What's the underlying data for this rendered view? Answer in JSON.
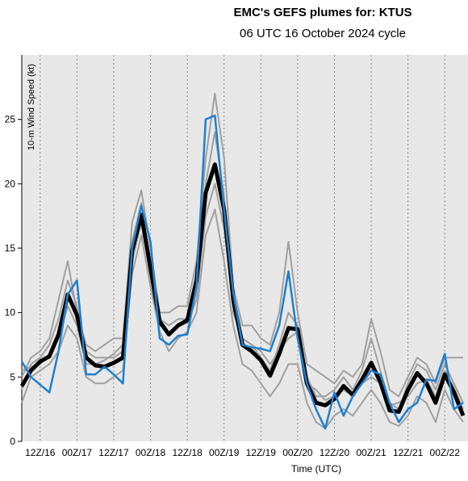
{
  "chart_data": {
    "type": "line",
    "title": "EMC's GEFS plumes for: KTUS",
    "subtitle": "06 UTC 16 October 2024 cycle",
    "x_label": "Time (UTC)",
    "y_label": "10-m Wind Speed (kt)",
    "categories": [
      null,
      null,
      "12Z/16",
      null,
      null,
      null,
      "00Z/17",
      null,
      null,
      null,
      "12Z/17",
      null,
      null,
      null,
      "00Z/18",
      null,
      null,
      null,
      "12Z/18",
      null,
      null,
      null,
      "00Z/19",
      null,
      null,
      null,
      "12Z/19",
      null,
      null,
      null,
      "00Z/20",
      null,
      null,
      null,
      "12Z/20",
      null,
      null,
      null,
      "00Z/21",
      null,
      null,
      null,
      "12Z/21",
      null,
      null,
      null,
      "00Z/22",
      null,
      null
    ],
    "ylim": [
      0,
      30
    ],
    "yticks": [
      0,
      5,
      10,
      15,
      20,
      25
    ],
    "series": [
      {
        "color": "#a0a0a0",
        "linewidth": 2,
        "values": [
          5,
          6.5,
          7,
          8,
          11,
          14,
          10,
          7.5,
          7,
          7.5,
          8,
          8,
          17,
          19.5,
          15,
          10,
          10,
          10.5,
          10.5,
          14,
          22,
          27,
          22,
          12,
          9,
          9,
          8,
          7.5,
          10,
          15.5,
          10,
          6,
          5.5,
          5,
          4.5,
          5.5,
          5,
          6,
          9.5,
          7,
          4,
          3.5,
          5,
          6.5,
          6,
          4.5,
          6.5,
          6.5,
          6.5
        ]
      },
      {
        "color": "#a0a0a0",
        "linewidth": 2,
        "values": [
          3,
          5,
          5.5,
          6,
          7,
          9,
          8,
          5,
          4.5,
          4.5,
          5,
          5.5,
          13,
          16,
          12,
          8.5,
          7,
          8,
          8.5,
          10,
          16,
          18,
          14,
          9,
          6,
          5.5,
          4.5,
          3.5,
          4.5,
          6,
          6,
          3,
          1.5,
          1,
          2,
          2.5,
          2,
          3,
          4,
          3,
          1.5,
          1.2,
          2,
          3.5,
          3,
          1.5,
          4,
          2.5,
          1.5
        ]
      },
      {
        "color": "#a0a0a0",
        "linewidth": 2,
        "values": [
          4,
          6,
          6.5,
          7.5,
          9.5,
          12.5,
          10.5,
          7,
          6.5,
          6.5,
          6.5,
          7,
          15.5,
          18.5,
          14,
          9.5,
          9,
          9.5,
          9.5,
          12,
          20,
          24,
          19,
          10,
          8,
          7.5,
          6.5,
          5.5,
          7.5,
          10,
          9,
          5,
          3.5,
          3.5,
          4,
          5,
          4,
          5.5,
          8,
          5.5,
          3,
          2.5,
          4.5,
          6,
          5.5,
          4,
          6,
          4.5,
          3
        ]
      },
      {
        "color": "#a0a0a0",
        "linewidth": 2,
        "values": [
          5.5,
          5.8,
          6,
          6.8,
          8,
          10.5,
          9,
          6,
          6,
          6.3,
          6.8,
          7.5,
          14,
          17,
          13,
          9,
          8.5,
          9,
          9.2,
          11,
          17.5,
          20,
          16.5,
          11,
          8,
          7.5,
          7,
          6,
          7,
          8,
          8.5,
          4.5,
          4,
          3.2,
          3.5,
          4,
          3.5,
          4.5,
          5,
          4.5,
          2.8,
          3,
          3.5,
          4.5,
          4.8,
          3.5,
          5.5,
          4.2,
          2.5
        ]
      },
      {
        "color": "#000000",
        "linewidth": 5,
        "values": [
          4.3,
          5.5,
          6.2,
          6.6,
          8.3,
          11.4,
          9.8,
          6.5,
          5.9,
          5.8,
          6.1,
          6.5,
          14.8,
          17.6,
          13.4,
          9.3,
          8.3,
          9.0,
          9.4,
          12.5,
          19.3,
          21.5,
          18.0,
          11.0,
          7.5,
          7.0,
          6.3,
          5.1,
          6.8,
          8.8,
          8.7,
          4.5,
          3.0,
          2.8,
          3.3,
          4.3,
          3.6,
          4.8,
          6.1,
          4.6,
          2.4,
          2.3,
          4.0,
          5.3,
          4.5,
          3.0,
          5.2,
          3.8,
          2.0
        ]
      },
      {
        "color": "#1f7fd0",
        "linewidth": 2.5,
        "values": [
          6.2,
          5.0,
          4.4,
          3.8,
          7.0,
          11.4,
          12.5,
          5.2,
          5.2,
          5.8,
          5.2,
          4.5,
          15.0,
          18.3,
          15.5,
          8.0,
          7.5,
          8.2,
          8.3,
          12.0,
          25.0,
          25.3,
          18.0,
          11.5,
          7.5,
          7.3,
          7.2,
          7.0,
          9.0,
          13.2,
          8.0,
          4.5,
          2.5,
          1.0,
          3.8,
          2.0,
          3.5,
          4.5,
          5.5,
          5.2,
          3.0,
          1.5,
          2.5,
          3.0,
          4.8,
          4.7,
          6.8,
          2.5,
          3.0
        ]
      }
    ]
  }
}
